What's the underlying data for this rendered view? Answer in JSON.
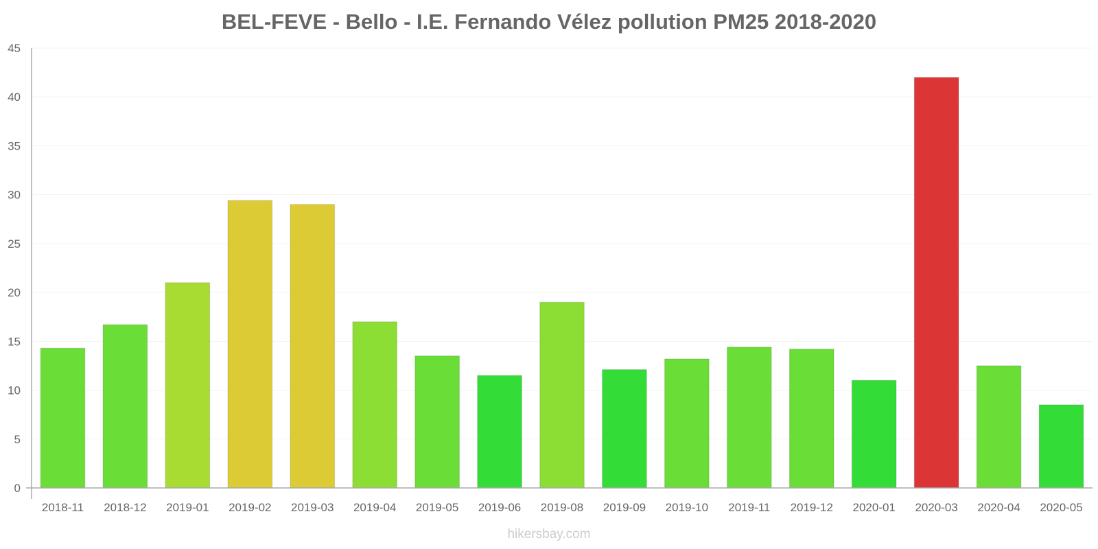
{
  "chart_data": {
    "type": "bar",
    "title": "BEL-FEVE - Bello - I.E. Fernando Vélez pollution PM25 2018-2020",
    "xlabel": "",
    "ylabel": "",
    "ylim": [
      0,
      45
    ],
    "yticks": [
      0,
      5,
      10,
      15,
      20,
      25,
      30,
      35,
      40,
      45
    ],
    "grid": true,
    "categories": [
      "2018-11",
      "2018-12",
      "2019-01",
      "2019-02",
      "2019-03",
      "2019-04",
      "2019-05",
      "2019-06",
      "2019-08",
      "2019-09",
      "2019-10",
      "2019-11",
      "2019-12",
      "2020-01",
      "2020-03",
      "2020-04",
      "2020-05"
    ],
    "values": [
      14.3,
      16.7,
      21.0,
      29.4,
      29.0,
      17.0,
      13.5,
      11.5,
      19.0,
      12.1,
      13.2,
      14.4,
      14.2,
      11.0,
      42.0,
      12.5,
      8.5
    ],
    "colors": [
      "#6add36",
      "#6add36",
      "#a9dc33",
      "#dccb35",
      "#dccb35",
      "#8cde34",
      "#6add36",
      "#33dc36",
      "#8cde34",
      "#33dc36",
      "#6add36",
      "#6add36",
      "#6add36",
      "#33dc36",
      "#dc3535",
      "#6add36",
      "#33dc36"
    ],
    "watermark": "hikersbay.com"
  }
}
